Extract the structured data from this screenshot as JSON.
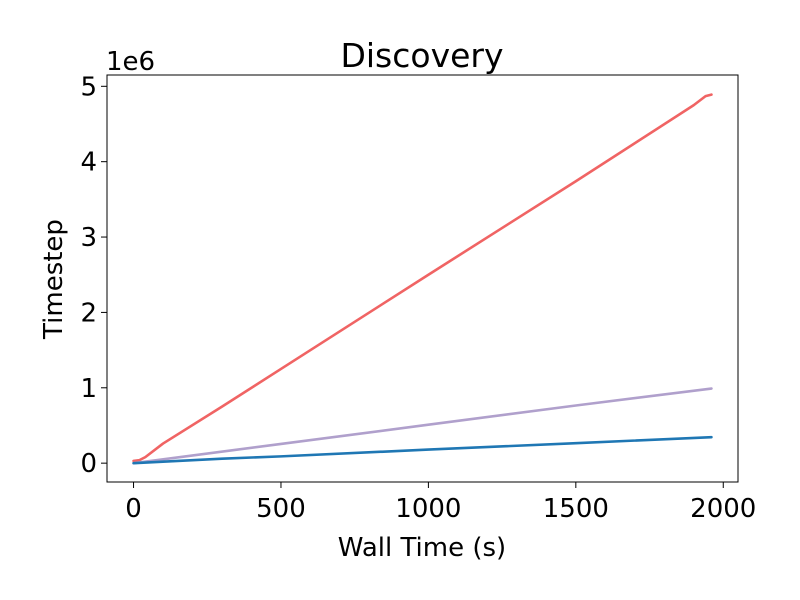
{
  "chart_data": {
    "type": "line",
    "title": "Discovery",
    "xlabel": "Wall Time (s)",
    "ylabel": "Timestep",
    "y_offset_label": "1e6",
    "y_multiplier": 1000000,
    "xlim": [
      -90,
      2050
    ],
    "ylim": [
      -250000,
      5150000
    ],
    "x_ticks": [
      0,
      500,
      1000,
      1500,
      2000
    ],
    "x_tick_labels": [
      "0",
      "500",
      "1000",
      "1500",
      "2000"
    ],
    "y_ticks": [
      0,
      1000000,
      2000000,
      3000000,
      4000000,
      5000000
    ],
    "y_tick_labels": [
      "0",
      "1",
      "2",
      "3",
      "4",
      "5"
    ],
    "grid": false,
    "series": [
      {
        "color": "#f06464",
        "x": [
          0,
          20,
          40,
          100,
          300,
          500,
          1000,
          1500,
          1900,
          1940,
          1960
        ],
        "y": [
          30000,
          40000,
          80000,
          260000,
          750000,
          1250000,
          2500000,
          3740000,
          4750000,
          4870000,
          4890000
        ]
      },
      {
        "color": "#b0a0cc",
        "x": [
          0,
          500,
          1000,
          1500,
          1960
        ],
        "y": [
          0,
          255000,
          510000,
          765000,
          990000
        ]
      },
      {
        "color": "#1f77b4",
        "x": [
          0,
          300,
          500,
          1000,
          1500,
          1960
        ],
        "y": [
          0,
          60000,
          90000,
          180000,
          265000,
          345000
        ]
      }
    ]
  }
}
